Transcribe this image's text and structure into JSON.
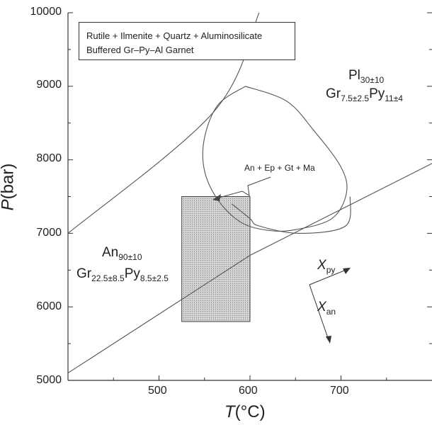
{
  "chart_data": {
    "type": "line",
    "xlabel_var": "T",
    "xlabel_unit": "(°C)",
    "ylabel_var": "P",
    "ylabel_unit": "(bar)",
    "xlim": [
      400,
      800
    ],
    "ylim": [
      5000,
      10000
    ],
    "x_ticks": [
      "500",
      "600",
      "700"
    ],
    "y_ticks": [
      "5000",
      "6000",
      "7000",
      "8000",
      "9000",
      "10000"
    ],
    "legend": {
      "line1": "Rutile + Ilmenite + Quartz + Aluminosilicate",
      "line2": "Buffered Gr–Py–Al Garnet"
    },
    "upper_line": {
      "points": [
        [
          400,
          7000
        ],
        [
          560,
          8650
        ],
        [
          610,
          10000
        ]
      ]
    },
    "lower_line": {
      "points": [
        [
          400,
          5100
        ],
        [
          600,
          6700
        ],
        [
          800,
          7950
        ]
      ]
    },
    "loop_curve": {
      "points": [
        [
          595,
          9000
        ],
        [
          640,
          8800
        ],
        [
          670,
          8400
        ],
        [
          700,
          7900
        ],
        [
          706,
          7550
        ],
        [
          690,
          7200
        ],
        [
          650,
          7050
        ],
        [
          620,
          7040
        ],
        [
          590,
          7150
        ],
        [
          565,
          7450
        ],
        [
          550,
          7850
        ],
        [
          550,
          8300
        ],
        [
          565,
          8750
        ],
        [
          595,
          9000
        ]
      ]
    },
    "loop_tail": {
      "points": [
        [
          580,
          7400
        ],
        [
          600,
          7200
        ],
        [
          610,
          7100
        ],
        [
          655,
          7000
        ],
        [
          705,
          7100
        ],
        [
          710,
          7500
        ]
      ]
    },
    "shaded_box": {
      "x": [
        525,
        600
      ],
      "y": [
        5800,
        7500
      ]
    },
    "annotations": {
      "reaction": "An + Ep + Gt + Ma",
      "xpy": "X",
      "xpy_sub": "py",
      "xan": "X",
      "xan_sub": "an",
      "pl": "Pl",
      "pl_sub": "30±10",
      "gr_upper": "Gr",
      "gr_upper_sub": "7.5±2.5",
      "py_upper": "Py",
      "py_upper_sub": "11±4",
      "an_lower": "An",
      "an_lower_sub": "90±10",
      "gr_lower": "Gr",
      "gr_lower_sub": "22.5±8.5",
      "py_lower": "Py",
      "py_lower_sub": "8.5±2.5"
    }
  }
}
